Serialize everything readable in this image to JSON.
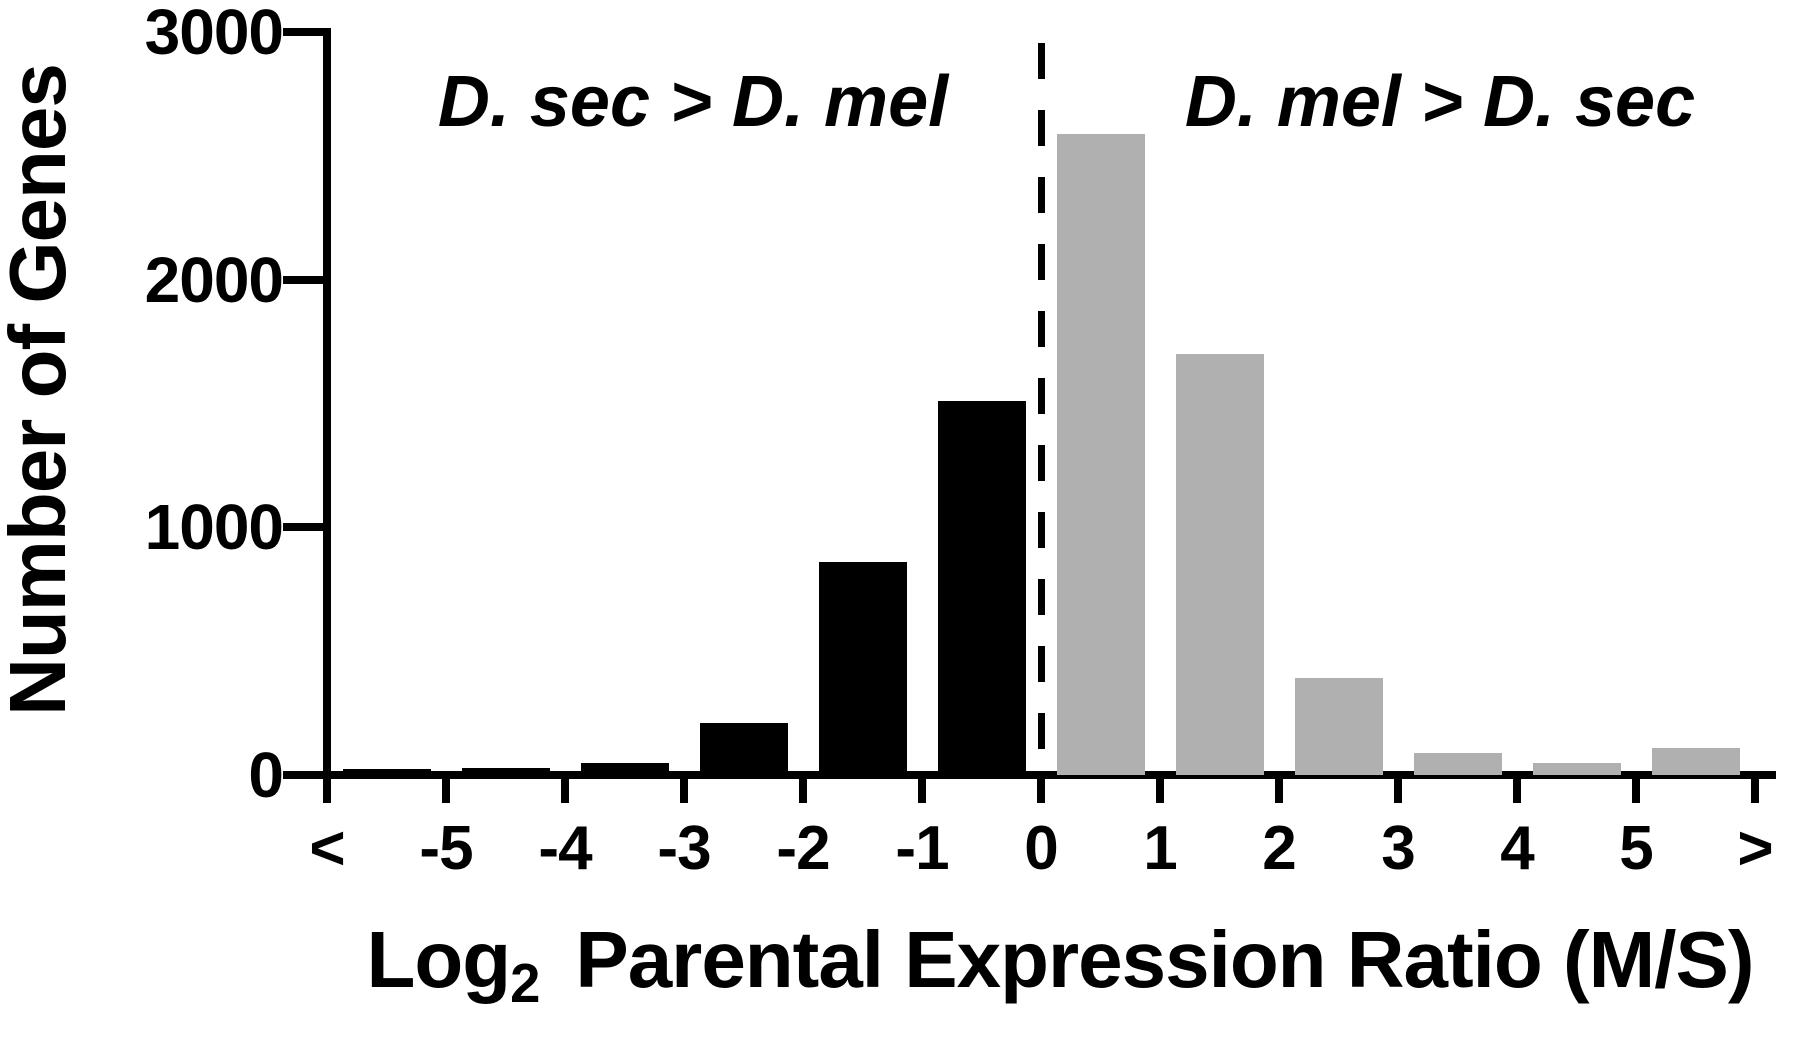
{
  "figure_type": "histogram",
  "chart_data": {
    "type": "bar",
    "title": "",
    "xlabel": "Log2 Parental Expression Ratio (M/S)",
    "xlabel_parts": {
      "prefix": "Log",
      "subscript": "2",
      "rest": "Parental Expression Ratio (M/S)"
    },
    "ylabel": "Number of Genes",
    "x_tick_labels": [
      "<",
      "-5",
      "-4",
      "-3",
      "-2",
      "-1",
      "0",
      "1",
      "2",
      "3",
      "4",
      "5",
      ">"
    ],
    "y_tick_values": [
      0,
      1000,
      2000,
      3000
    ],
    "ylim": [
      0,
      3000
    ],
    "grid": false,
    "legend": "none",
    "bin_note": "12 bins between consecutive x ticks; bars sit between tick marks",
    "series": [
      {
        "name": "D. sec > D. mel",
        "color": "#000000",
        "bin_ranges": [
          "< -5",
          "-5 to -4",
          "-4 to -3",
          "-3 to -2",
          "-2 to -1",
          "-1 to 0"
        ],
        "values": [
          25,
          30,
          50,
          210,
          860,
          1510
        ]
      },
      {
        "name": "D. mel > D. sec",
        "color": "#b0b0b0",
        "bin_ranges": [
          "0 to 1",
          "1 to 2",
          "2 to 3",
          "3 to 4",
          "4 to 5",
          "> 5"
        ],
        "values": [
          2590,
          1700,
          390,
          90,
          50,
          110
        ]
      }
    ],
    "reference_line": {
      "at_x_tick": "0",
      "style": "dashed",
      "color": "#000000"
    },
    "annotations": [
      {
        "text": "D. sec > D. mel",
        "position": "upper-left",
        "style": "italic"
      },
      {
        "text": "D. mel > D. sec",
        "position": "upper-right",
        "style": "italic"
      }
    ]
  }
}
